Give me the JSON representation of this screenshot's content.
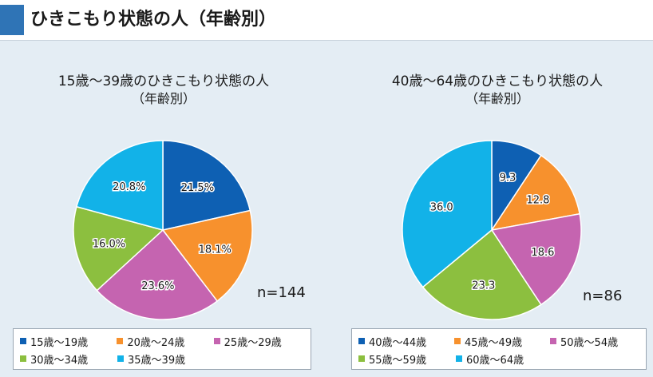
{
  "header": {
    "title": "ひきこもり状態の人（年齢別）"
  },
  "chart_data": [
    {
      "type": "pie",
      "title": "15歳～39歳のひきこもり状態の人",
      "subtitle": "（年齢別）",
      "note": "n=144",
      "value_suffix": "%",
      "slices": [
        {
          "name": "15歳～19歳",
          "value": 21.5,
          "label": "21.5%",
          "color": "#0e60b3"
        },
        {
          "name": "20歳～24歳",
          "value": 18.1,
          "label": "18.1%",
          "color": "#f7912d"
        },
        {
          "name": "25歳～29歳",
          "value": 23.6,
          "label": "23.6%",
          "color": "#c564b0"
        },
        {
          "name": "30歳～34歳",
          "value": 16.0,
          "label": "16.0%",
          "color": "#8cbf3f"
        },
        {
          "name": "35歳～39歳",
          "value": 20.8,
          "label": "20.8%",
          "color": "#12b2e8"
        }
      ]
    },
    {
      "type": "pie",
      "title": "40歳～64歳のひきこもり状態の人",
      "subtitle": "（年齢別）",
      "note": "n=86",
      "value_suffix": "",
      "slices": [
        {
          "name": "40歳～44歳",
          "value": 9.3,
          "label": "9.3",
          "color": "#0e60b3"
        },
        {
          "name": "45歳～49歳",
          "value": 12.8,
          "label": "12.8",
          "color": "#f7912d"
        },
        {
          "name": "50歳～54歳",
          "value": 18.6,
          "label": "18.6",
          "color": "#c564b0"
        },
        {
          "name": "55歳～59歳",
          "value": 23.3,
          "label": "23.3",
          "color": "#8cbf3f"
        },
        {
          "name": "60歳～64歳",
          "value": 36.0,
          "label": "36.0",
          "color": "#12b2e8"
        }
      ]
    }
  ]
}
